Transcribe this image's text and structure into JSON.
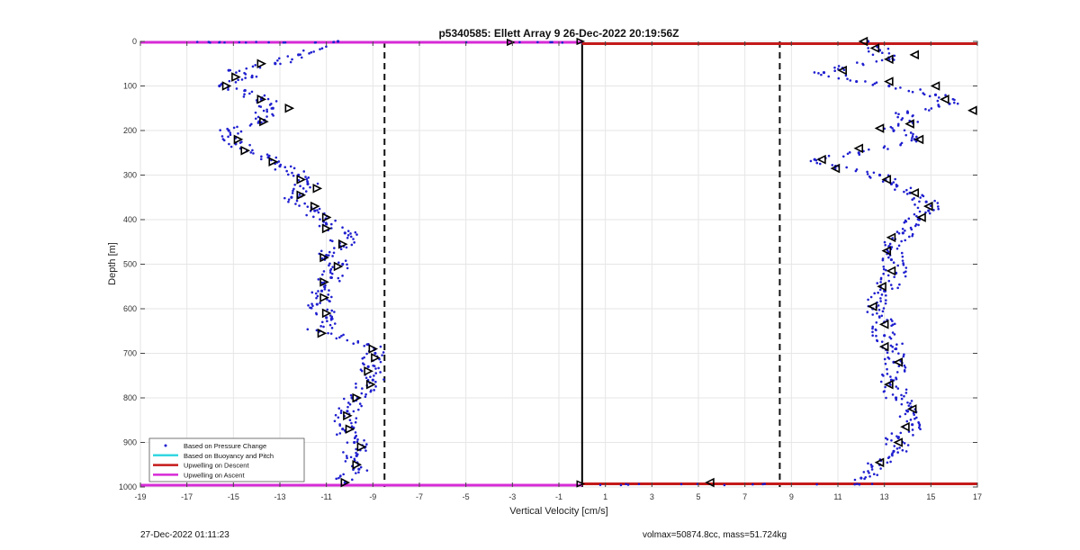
{
  "footer": {
    "timestamp": "27-Dec-2022 01:11:23",
    "info": "volmax=50874.8cc, mass=51.724kg"
  },
  "chart_data": {
    "type": "scatter",
    "title": "p5340585: Ellett Array 9 26-Dec-2022 20:19:56Z",
    "xlabel": "Vertical Velocity [cm/s]",
    "ylabel": "Depth [m]",
    "xlim": [
      -19,
      17
    ],
    "ylim": [
      0,
      1000
    ],
    "y_reversed": true,
    "grid": true,
    "x_ticks": [
      -19,
      -17,
      -15,
      -13,
      -11,
      -9,
      -7,
      -5,
      -3,
      -1,
      1,
      3,
      5,
      7,
      9,
      11,
      13,
      15,
      17
    ],
    "x_tick_labels": [
      "-19",
      "-17",
      "-15",
      "-13",
      "-11",
      "-9",
      "-7",
      "-5",
      "-3",
      "-1",
      "1",
      "3",
      "5",
      "7",
      "9",
      "11",
      "13",
      "15",
      "17"
    ],
    "y_ticks": [
      0,
      100,
      200,
      300,
      400,
      500,
      600,
      700,
      800,
      900,
      1000
    ],
    "y_tick_labels": [
      "0",
      "100",
      "200",
      "300",
      "400",
      "500",
      "600",
      "700",
      "800",
      "900",
      "1000"
    ],
    "legend_position": "bottom-left",
    "legend": [
      {
        "label": "Based on Pressure Change",
        "color": "#1f1fd0",
        "style": "dot"
      },
      {
        "label": "Based on Buoyancy and Pitch",
        "color": "#33d6e0",
        "style": "line"
      },
      {
        "label": "Upwelling on Descent",
        "color": "#c41a1a",
        "style": "line"
      },
      {
        "label": "Upwelling on Ascent",
        "color": "#d62ad6",
        "style": "line"
      }
    ],
    "reference_lines": [
      {
        "type": "vertical",
        "x": -8.5,
        "style": "dashed",
        "color": "#111111"
      },
      {
        "type": "vertical",
        "x": 8.5,
        "style": "dashed",
        "color": "#111111"
      },
      {
        "type": "vertical",
        "x": 0,
        "style": "solid",
        "color": "#000000"
      },
      {
        "type": "horizontal",
        "y": 5,
        "x_range": [
          0,
          17
        ],
        "color": "#c41a1a",
        "label": "Upwelling on Descent"
      },
      {
        "type": "horizontal",
        "y": 993,
        "x_range": [
          0,
          17
        ],
        "color": "#c41a1a",
        "label": "Upwelling on Descent"
      },
      {
        "type": "horizontal",
        "y": 2,
        "x_range": [
          -19,
          0
        ],
        "color": "#d62ad6",
        "label": "Upwelling on Ascent"
      },
      {
        "type": "horizontal",
        "y": 996,
        "x_range": [
          -19,
          0
        ],
        "color": "#d62ad6",
        "label": "Upwelling on Ascent"
      }
    ],
    "series": [
      {
        "name": "Based on Pressure Change",
        "color": "#1f1fd0",
        "profiles": [
          {
            "depth": [
              0,
              30,
              50,
              65,
              80,
              100,
              110,
              130,
              150,
              180,
              200,
              230,
              260,
              280,
              300,
              320,
              350,
              380,
              410,
              430,
              460,
              480,
              500,
              530,
              560,
              590,
              620,
              650,
              680,
              700,
              730,
              760,
              800,
              830,
              870,
              900,
              930,
              960,
              990
            ],
            "velocity": [
              -10.5,
              -12.2,
              -13.2,
              -15.2,
              -14.2,
              -15.6,
              -14.5,
              -13.8,
              -13.3,
              -13.9,
              -15.2,
              -14.9,
              -13.5,
              -13.0,
              -12.2,
              -11.8,
              -12.5,
              -11.5,
              -11.0,
              -10.2,
              -10.4,
              -11.0,
              -10.3,
              -10.8,
              -11.2,
              -11.4,
              -11.0,
              -11.3,
              -9.2,
              -8.9,
              -9.2,
              -9.0,
              -9.9,
              -10.1,
              -10.3,
              -9.8,
              -9.7,
              -9.6,
              -10.2
            ]
          },
          {
            "depth": [
              0,
              20,
              40,
              60,
              70,
              90,
              100,
              120,
              140,
              160,
              180,
              200,
              220,
              250,
              265,
              280,
              300,
              320,
              340,
              360,
              380,
              400,
              430,
              460,
              490,
              520,
              560,
              600,
              630,
              660,
              690,
              720,
              760,
              800,
              830,
              860,
              890,
              920,
              950,
              980
            ],
            "velocity": [
              12.3,
              12.8,
              13.2,
              11.2,
              10.4,
              11.8,
              13.2,
              15.2,
              15.8,
              14.0,
              14.2,
              13.4,
              14.3,
              11.9,
              10.0,
              10.9,
              12.8,
              13.3,
              14.1,
              14.8,
              14.9,
              14.5,
              13.8,
              13.2,
              13.3,
              13.5,
              13.0,
              12.5,
              13.0,
              13.0,
              13.5,
              13.4,
              13.3,
              13.5,
              14.0,
              14.2,
              13.6,
              13.4,
              12.8,
              12.0
            ]
          }
        ]
      },
      {
        "name": "Based on Buoyancy and Pitch",
        "color": "#000000",
        "marker": "triangle",
        "profiles": [
          {
            "depth": [
              50,
              80,
              100,
              130,
              150,
              180,
              220,
              245,
              270,
              310,
              330,
              345,
              370,
              395,
              420,
              455,
              485,
              505,
              540,
              575,
              610,
              655,
              690,
              710,
              740,
              770,
              800,
              840,
              870,
              910,
              950,
              990
            ],
            "velocity": [
              -13.8,
              -14.9,
              -15.3,
              -13.8,
              -12.6,
              -13.7,
              -14.8,
              -14.5,
              -13.3,
              -12.1,
              -11.4,
              -12.1,
              -11.5,
              -11.0,
              -11.0,
              -10.3,
              -11.1,
              -10.5,
              -11.1,
              -11.1,
              -11.0,
              -11.2,
              -9.0,
              -8.9,
              -9.2,
              -9.1,
              -9.7,
              -10.1,
              -10.0,
              -9.5,
              -9.7,
              -10.2
            ]
          },
          {
            "depth": [
              0,
              15,
              30,
              40,
              65,
              90,
              100,
              130,
              155,
              185,
              195,
              220,
              240,
              265,
              285,
              310,
              340,
              370,
              395,
              440,
              470,
              515,
              550,
              595,
              635,
              685,
              720,
              770,
              825,
              865,
              900,
              945,
              990
            ],
            "velocity": [
              12.1,
              12.6,
              14.3,
              13.2,
              11.2,
              13.2,
              15.2,
              15.6,
              16.8,
              14.1,
              12.8,
              14.5,
              11.9,
              10.3,
              10.9,
              13.1,
              14.3,
              14.9,
              14.6,
              13.3,
              13.1,
              13.3,
              12.9,
              12.5,
              13.0,
              13.0,
              13.6,
              13.2,
              14.2,
              13.9,
              13.6,
              12.8,
              5.5
            ]
          }
        ]
      }
    ]
  }
}
